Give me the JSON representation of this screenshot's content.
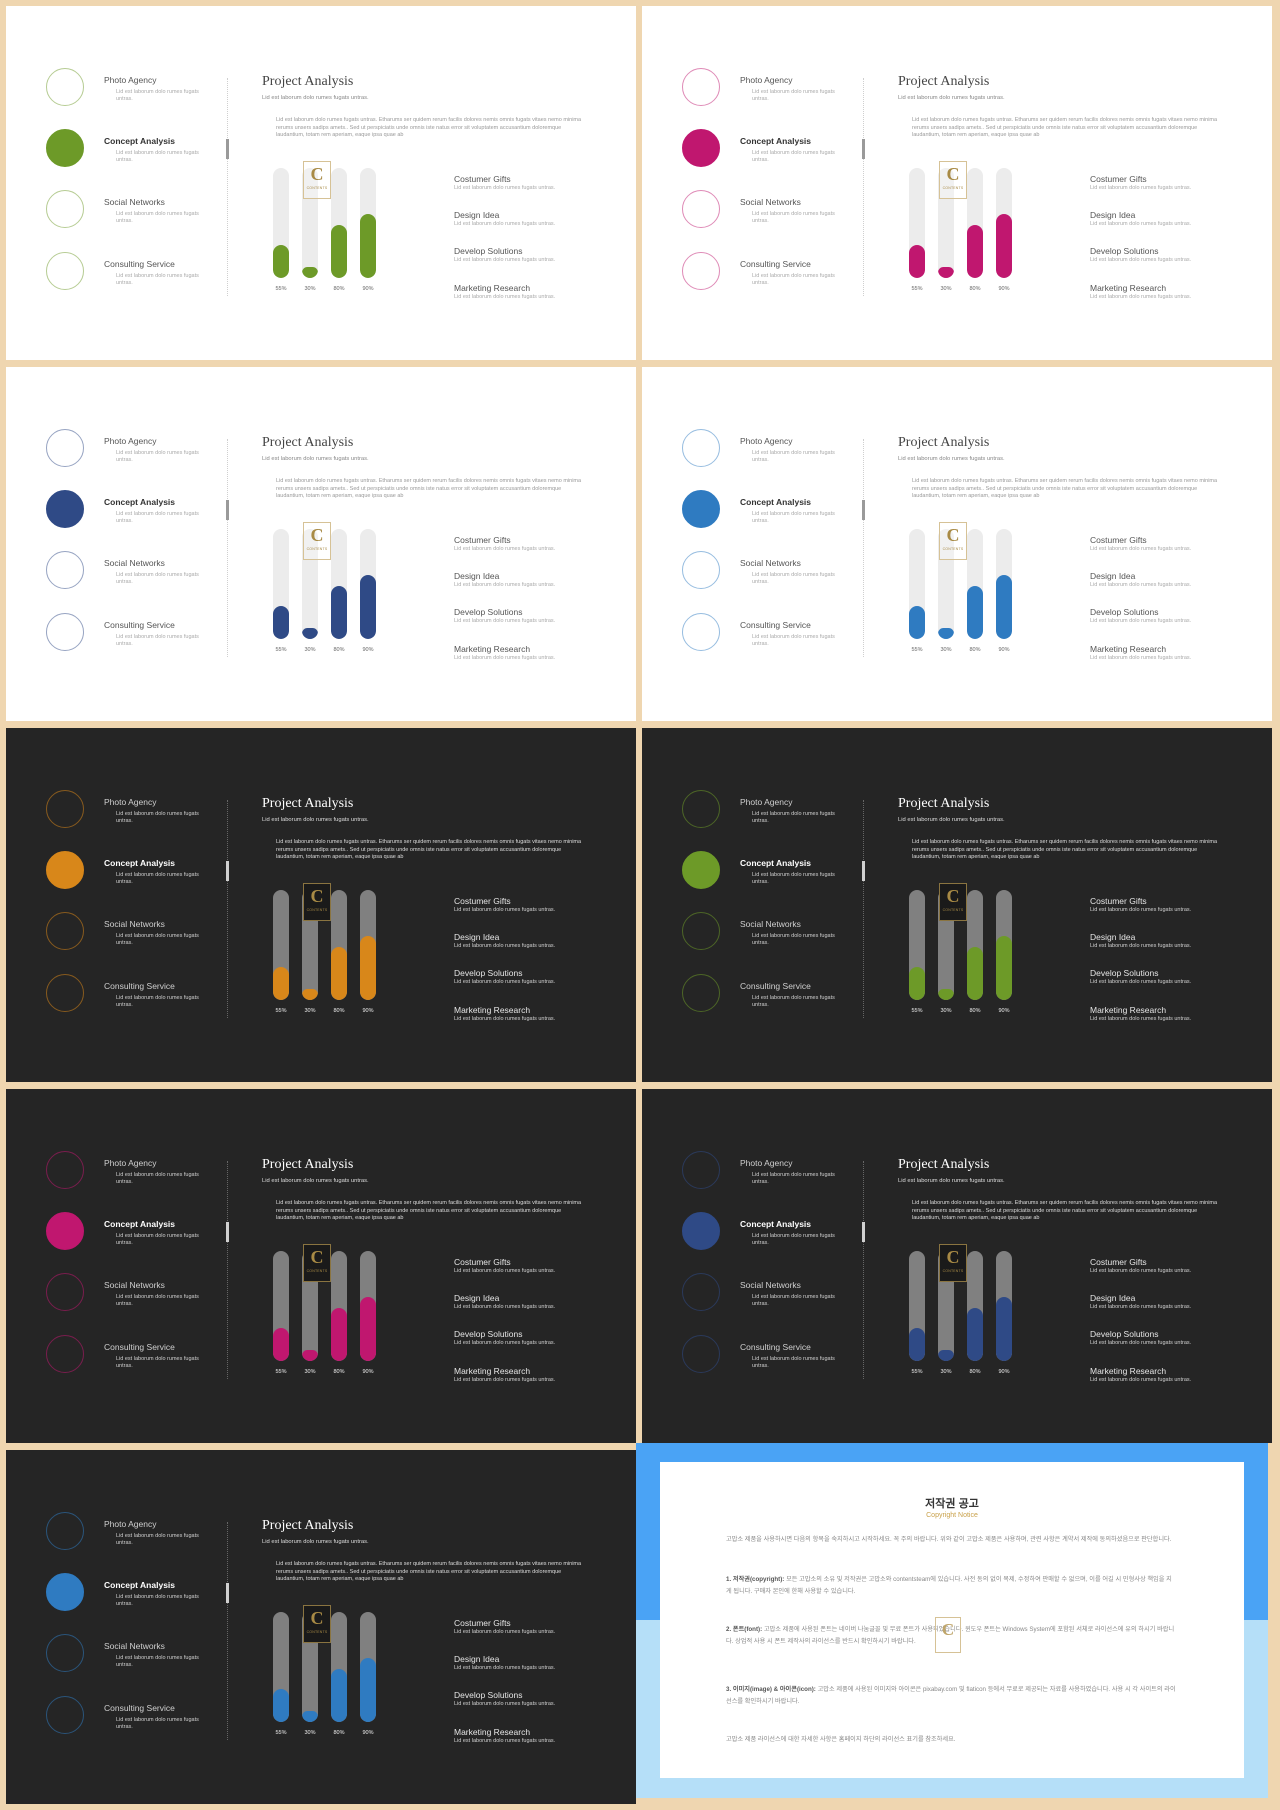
{
  "slide_content": {
    "left_items": [
      {
        "title": "Photo Agency",
        "sub": "Lid est laborum dolo rumes fugats untras."
      },
      {
        "title": "Concept Analysis",
        "sub": "Lid est laborum dolo rumes fugats untras."
      },
      {
        "title": "Social Networks",
        "sub": "Lid est laborum dolo rumes fugats untras."
      },
      {
        "title": "Consulting  Service",
        "sub": "Lid est laborum dolo rumes fugats untras."
      }
    ],
    "title": "Project Analysis",
    "subtitle": "Lid est laborum dolo rumes fugats untras.",
    "description": "Lid est laborum dolo rumes fugats untras. Etharums ser quidem rerum facilis dolores nemis omnis fugats vitaes nemo minima rerums unsers sadips amets.. Sed ut perspiciatis unde omnis iste natus error sit voluptatem accusantium doloremque laudantium, totam rem aperiam, eaque ipsa quae ab",
    "bars": [
      {
        "label": "55%",
        "value": 0.3
      },
      {
        "label": "30%",
        "value": 0.1
      },
      {
        "label": "80%",
        "value": 0.48
      },
      {
        "label": "90%",
        "value": 0.58
      }
    ],
    "logo_letter": "C",
    "logo_text": "CONTENTS",
    "right_items": [
      {
        "title": "Costumer Gifts",
        "sub": "Lid est laborum dolo rumes fugats untras."
      },
      {
        "title": "Design Idea",
        "sub": "Lid est laborum dolo rumes fugats untras."
      },
      {
        "title": "Develop Solutions",
        "sub": "Lid est laborum dolo rumes fugats untras."
      },
      {
        "title": "Marketing Research",
        "sub": "Lid est laborum dolo rumes fugats untras."
      }
    ]
  },
  "slides": [
    {
      "theme": "light",
      "accent": "#6d9a28"
    },
    {
      "theme": "light",
      "accent": "#c0176f"
    },
    {
      "theme": "light",
      "accent": "#2f4a86"
    },
    {
      "theme": "light",
      "accent": "#2f7bc1"
    },
    {
      "theme": "dark",
      "accent": "#d8871a"
    },
    {
      "theme": "dark",
      "accent": "#6d9a28"
    },
    {
      "theme": "dark",
      "accent": "#c0176f"
    },
    {
      "theme": "dark",
      "accent": "#2f4a86"
    },
    {
      "theme": "dark",
      "accent": "#2f7bc1"
    }
  ],
  "notice": {
    "title": "저작권 공고",
    "subtitle": "Copyright Notice",
    "intro": "고맙소 제품을 사용하시면 다음의 항목을 숙지하시고 시작하세요. 꼭 주의 바랍니다. 위와 같이 고맙소 제품은 사용하며, 관련 사항은 계약서 제작에 동의하셨음으로 판단합니다.",
    "p1_head": "1. 저작권(copyright):",
    "p1": "모든 고맙소의 소유 및 저작권은 고맙소와 contentsteam에 있습니다. 사전 동의 없이 복제, 수정하여 판매할 수 없으며, 이를 어길 시 민형사상 책임을 지게 됩니다. 구매자 본인에 한해 사용할 수 있습니다.",
    "p2_head": "2. 폰트(font):",
    "p2": "고맙소 제품에 사용된 폰트는 네이버 나눔글꼴 및 무료 폰트가 사용되었습니다. 윈도우 폰트는 Windows System에 포함된 서체로 라이선스에 유의 하시기 바랍니다. 상업적 사용 시 폰트 제작사의 라이선스를 반드시 확인하시기 바랍니다.",
    "p3_head": "3. 이미지(image) & 아이콘(icon):",
    "p3": "고맙소 제품에 사용된 이미지와 아이콘은 pixabay.com 및 flaticon 등에서 무료로 제공되는 자료를 사용하였습니다. 사용 시 각 사이트의 라이선스를 확인하시기 바랍니다.",
    "outro": "고맙소 제품 라이선스에 대한 자세한 사항은 홈페이지 하단의 라이선스 표기를 참조하세요.",
    "logo_letter": "C"
  }
}
